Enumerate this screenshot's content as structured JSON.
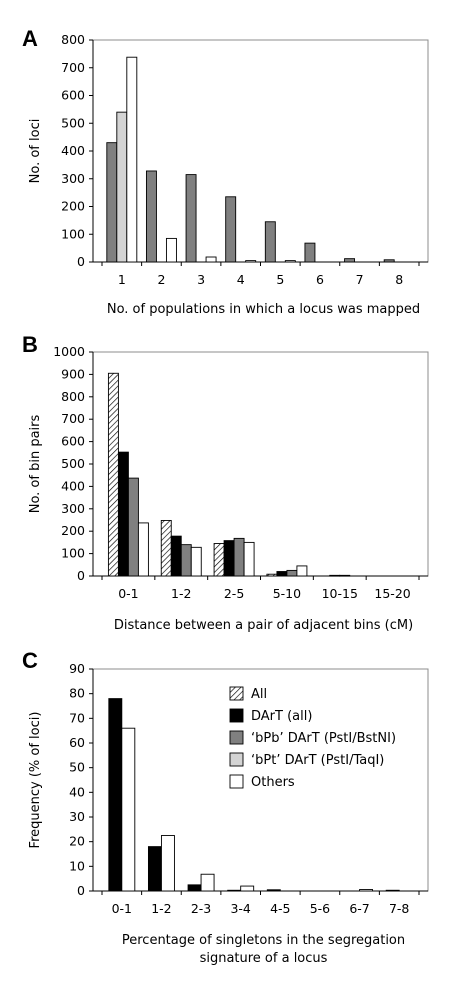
{
  "chart_data": [
    {
      "panel": "A",
      "type": "bar",
      "categories": [
        "1",
        "2",
        "3",
        "4",
        "5",
        "6",
        "7",
        "8"
      ],
      "ylabel": "No. of loci",
      "xlabel": "No. of populations in which a locus was mapped",
      "ylim": [
        0,
        800
      ],
      "yticks": [
        0,
        100,
        200,
        300,
        400,
        500,
        600,
        700,
        800
      ],
      "grid": false,
      "series": [
        {
          "values": [
            430,
            328,
            315,
            235,
            145,
            68,
            12,
            8
          ],
          "color": "#808080",
          "pattern": "solid"
        },
        {
          "values": [
            540,
            0,
            0,
            0,
            0,
            0,
            0,
            0
          ],
          "color": "#d4d4d4",
          "pattern": "solid"
        },
        {
          "values": [
            738,
            85,
            18,
            5,
            5,
            0,
            0,
            0
          ],
          "color": "#ffffff",
          "pattern": "solid"
        }
      ]
    },
    {
      "panel": "B",
      "type": "bar",
      "categories": [
        "0-1",
        "1-2",
        "2-5",
        "5-10",
        "10-15",
        "15-20"
      ],
      "ylabel": "No. of bin pairs",
      "xlabel": "Distance between a pair of adjacent bins (cM)",
      "ylim": [
        0,
        1000
      ],
      "yticks": [
        0,
        100,
        200,
        300,
        400,
        500,
        600,
        700,
        800,
        900,
        1000
      ],
      "grid": false,
      "series": [
        {
          "values": [
            905,
            248,
            145,
            8,
            0,
            0
          ],
          "color": "#ffffff",
          "pattern": "hatch"
        },
        {
          "values": [
            553,
            178,
            158,
            20,
            3,
            0
          ],
          "color": "#000000",
          "pattern": "solid"
        },
        {
          "values": [
            437,
            140,
            168,
            25,
            3,
            0
          ],
          "color": "#808080",
          "pattern": "solid"
        },
        {
          "values": [
            237,
            128,
            150,
            45,
            0,
            0
          ],
          "color": "#ffffff",
          "pattern": "solid"
        }
      ]
    },
    {
      "panel": "C",
      "type": "bar",
      "categories": [
        "0-1",
        "1-2",
        "2-3",
        "3-4",
        "4-5",
        "5-6",
        "6-7",
        "7-8"
      ],
      "ylabel": "Frequency (% of loci)",
      "xlabel": [
        "Percentage of singletons in the segregation",
        "signature of a locus"
      ],
      "ylim": [
        0,
        90
      ],
      "yticks": [
        0,
        10,
        20,
        30,
        40,
        50,
        60,
        70,
        80,
        90
      ],
      "grid": false,
      "legend_position": "upper-right",
      "legend": [
        {
          "label": "All",
          "color": "#ffffff",
          "pattern": "hatch"
        },
        {
          "label": "DArT (all)",
          "color": "#000000",
          "pattern": "solid"
        },
        {
          "label": "‘bPb’ DArT (PstI/BstNI)",
          "color": "#808080",
          "pattern": "solid"
        },
        {
          "label": "‘bPt’ DArT (PstI/TaqI)",
          "color": "#d4d4d4",
          "pattern": "solid"
        },
        {
          "label": "Others",
          "color": "#ffffff",
          "pattern": "solid"
        }
      ],
      "series": [
        {
          "values": [
            78,
            18,
            2.5,
            0.3,
            0.5,
            0,
            0,
            0.3
          ],
          "color": "#000000",
          "pattern": "solid"
        },
        {
          "values": [
            66,
            22.5,
            6.8,
            2,
            0,
            0,
            0.6,
            0
          ],
          "color": "#ffffff",
          "pattern": "solid"
        }
      ]
    }
  ]
}
